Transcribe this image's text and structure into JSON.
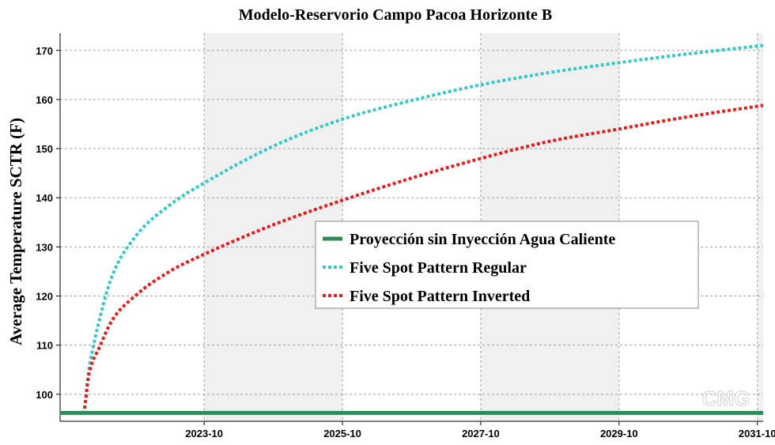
{
  "chart_data": {
    "type": "line",
    "title": "Modelo-Reservorio Campo Pacoa Horizonte B",
    "xlabel": "",
    "ylabel": "Average Temperature SCTR (F)",
    "x_ticks": [
      "2023-10",
      "2025-10",
      "2027-10",
      "2029-10",
      "2031-10"
    ],
    "y_ticks": [
      100,
      110,
      120,
      130,
      140,
      150,
      160,
      170
    ],
    "xlim": [
      "2021-09",
      "2031-11"
    ],
    "ylim": [
      94.5,
      173.5
    ],
    "grid": true,
    "legend_position": "center-right",
    "series": [
      {
        "name": "Proyección sin Inyección Agua Caliente",
        "color": "#2e8b57",
        "style": "solid",
        "x": [
          "2021-09",
          "2031-11"
        ],
        "y": [
          96.2,
          96.2
        ]
      },
      {
        "name": "Five Spot Pattern Regular",
        "color": "#3cc7c7",
        "style": "dotted",
        "x": [
          "2021-09",
          "2022-01",
          "2022-02",
          "2022-04",
          "2022-06",
          "2022-10",
          "2023-04",
          "2023-10",
          "2024-10",
          "2025-10",
          "2026-10",
          "2027-10",
          "2028-10",
          "2029-10",
          "2030-10",
          "2031-11"
        ],
        "y": [
          96.2,
          96.2,
          105,
          116,
          124,
          132,
          138.5,
          143,
          150.5,
          156,
          159.8,
          163,
          165.5,
          167.5,
          169.3,
          171
        ]
      },
      {
        "name": "Five Spot Pattern Inverted",
        "color": "#e02020",
        "style": "dotted",
        "x": [
          "2021-09",
          "2022-01",
          "2022-02",
          "2022-04",
          "2022-06",
          "2022-10",
          "2023-04",
          "2023-10",
          "2024-10",
          "2025-10",
          "2026-10",
          "2027-10",
          "2028-10",
          "2029-10",
          "2030-10",
          "2031-11"
        ],
        "y": [
          96.2,
          96.2,
          104,
          110,
          115,
          120,
          125,
          128.5,
          134.5,
          139.5,
          144,
          148,
          151.5,
          154,
          156.5,
          158.8
        ]
      }
    ]
  }
}
